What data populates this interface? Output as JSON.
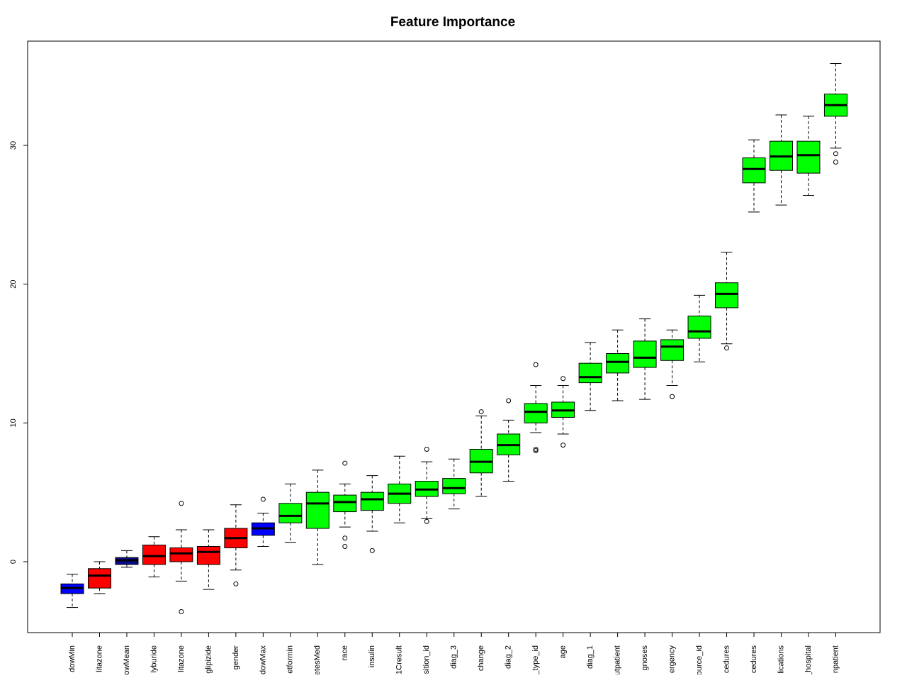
{
  "chart_data": {
    "type": "boxplot",
    "title": "Feature Importance",
    "xlabel": "",
    "ylabel": "",
    "ylim": [
      -5.1,
      37.5
    ],
    "yticks": [
      0,
      10,
      20,
      30
    ],
    "grid": false,
    "legend": "none",
    "colors": {
      "rejected": "#ff0000",
      "confirmed": "#00ff00",
      "shadow": "#0000ff",
      "shadow_mean": "#0a0a8c"
    },
    "categories": [
      {
        "label": "dowMin",
        "status": "shadow",
        "min": -3.3,
        "q1": -2.3,
        "median": -1.9,
        "q3": -1.6,
        "max": -0.9,
        "outliers": []
      },
      {
        "label": "litazone",
        "status": "rejected",
        "min": -2.3,
        "q1": -1.9,
        "median": -1.0,
        "q3": -0.5,
        "max": 0.0,
        "outliers": []
      },
      {
        "label": "owMean",
        "status": "shadow_mean",
        "min": -0.4,
        "q1": -0.2,
        "median": 0.1,
        "q3": 0.3,
        "max": 0.8,
        "outliers": []
      },
      {
        "label": "lyburide",
        "status": "rejected",
        "min": -1.1,
        "q1": -0.2,
        "median": 0.4,
        "q3": 1.2,
        "max": 1.8,
        "outliers": []
      },
      {
        "label": "litazone",
        "status": "rejected",
        "min": -1.4,
        "q1": 0.0,
        "median": 0.6,
        "q3": 1.0,
        "max": 2.3,
        "outliers": [
          4.2,
          -3.6
        ]
      },
      {
        "label": "glipizide",
        "status": "rejected",
        "min": -2.0,
        "q1": -0.2,
        "median": 0.7,
        "q3": 1.1,
        "max": 2.3,
        "outliers": []
      },
      {
        "label": "gender",
        "status": "rejected",
        "min": -0.6,
        "q1": 1.0,
        "median": 1.7,
        "q3": 2.4,
        "max": 4.1,
        "outliers": [
          -1.6
        ]
      },
      {
        "label": "dowMax",
        "status": "shadow",
        "min": 1.1,
        "q1": 1.9,
        "median": 2.4,
        "q3": 2.8,
        "max": 3.5,
        "outliers": [
          4.5
        ]
      },
      {
        "label": "etformin",
        "status": "confirmed",
        "min": 1.4,
        "q1": 2.8,
        "median": 3.3,
        "q3": 4.2,
        "max": 5.6,
        "outliers": []
      },
      {
        "label": "etesMed",
        "status": "confirmed",
        "min": -0.2,
        "q1": 2.4,
        "median": 4.2,
        "q3": 5.0,
        "max": 6.6,
        "outliers": []
      },
      {
        "label": "race",
        "status": "confirmed",
        "min": 2.5,
        "q1": 3.6,
        "median": 4.3,
        "q3": 4.8,
        "max": 5.6,
        "outliers": [
          7.1,
          1.7,
          1.1
        ]
      },
      {
        "label": "insulin",
        "status": "confirmed",
        "min": 2.2,
        "q1": 3.7,
        "median": 4.5,
        "q3": 5.0,
        "max": 6.2,
        "outliers": [
          0.8
        ]
      },
      {
        "label": "1Cresult",
        "status": "confirmed",
        "min": 2.8,
        "q1": 4.2,
        "median": 4.9,
        "q3": 5.6,
        "max": 7.6,
        "outliers": []
      },
      {
        "label": "sition_id",
        "status": "confirmed",
        "min": 3.1,
        "q1": 4.7,
        "median": 5.2,
        "q3": 5.8,
        "max": 7.2,
        "outliers": [
          8.1,
          2.9
        ]
      },
      {
        "label": "diag_3",
        "status": "confirmed",
        "min": 3.8,
        "q1": 4.9,
        "median": 5.3,
        "q3": 6.0,
        "max": 7.4,
        "outliers": []
      },
      {
        "label": "change",
        "status": "confirmed",
        "min": 4.7,
        "q1": 6.4,
        "median": 7.2,
        "q3": 8.1,
        "max": 10.5,
        "outliers": [
          10.8
        ]
      },
      {
        "label": "diag_2",
        "status": "confirmed",
        "min": 5.8,
        "q1": 7.7,
        "median": 8.4,
        "q3": 9.2,
        "max": 10.2,
        "outliers": [
          11.6
        ]
      },
      {
        "label": "_type_id",
        "status": "confirmed",
        "min": 9.3,
        "q1": 10.0,
        "median": 10.8,
        "q3": 11.4,
        "max": 12.7,
        "outliers": [
          14.2,
          8.1,
          8.0
        ]
      },
      {
        "label": "age",
        "status": "confirmed",
        "min": 9.2,
        "q1": 10.4,
        "median": 10.9,
        "q3": 11.5,
        "max": 12.7,
        "outliers": [
          13.2,
          8.4
        ]
      },
      {
        "label": "diag_1",
        "status": "confirmed",
        "min": 10.9,
        "q1": 12.9,
        "median": 13.3,
        "q3": 14.3,
        "max": 15.8,
        "outliers": []
      },
      {
        "label": "utpatient",
        "status": "confirmed",
        "min": 11.6,
        "q1": 13.6,
        "median": 14.4,
        "q3": 15.0,
        "max": 16.7,
        "outliers": []
      },
      {
        "label": "gnoses",
        "status": "confirmed",
        "min": 11.7,
        "q1": 14.0,
        "median": 14.7,
        "q3": 15.9,
        "max": 17.5,
        "outliers": []
      },
      {
        "label": "ergency",
        "status": "confirmed",
        "min": 12.7,
        "q1": 14.5,
        "median": 15.5,
        "q3": 16.0,
        "max": 16.7,
        "outliers": [
          11.9
        ]
      },
      {
        "label": "ource_id",
        "status": "confirmed",
        "min": 14.4,
        "q1": 16.1,
        "median": 16.6,
        "q3": 17.7,
        "max": 19.2,
        "outliers": []
      },
      {
        "label": "cedures",
        "status": "confirmed",
        "min": 15.7,
        "q1": 18.3,
        "median": 19.3,
        "q3": 20.1,
        "max": 22.3,
        "outliers": [
          15.4
        ]
      },
      {
        "label": "cedures",
        "status": "confirmed",
        "min": 25.2,
        "q1": 27.3,
        "median": 28.3,
        "q3": 29.1,
        "max": 30.4,
        "outliers": []
      },
      {
        "label": "lications",
        "status": "confirmed",
        "min": 25.7,
        "q1": 28.2,
        "median": 29.2,
        "q3": 30.3,
        "max": 32.2,
        "outliers": []
      },
      {
        "label": "_hospital",
        "status": "confirmed",
        "min": 26.4,
        "q1": 28.0,
        "median": 29.3,
        "q3": 30.3,
        "max": 32.1,
        "outliers": []
      },
      {
        "label": "npatient",
        "status": "confirmed",
        "min": 29.8,
        "q1": 32.1,
        "median": 32.9,
        "q3": 33.7,
        "max": 35.9,
        "outliers": [
          29.4,
          28.8
        ]
      }
    ]
  }
}
